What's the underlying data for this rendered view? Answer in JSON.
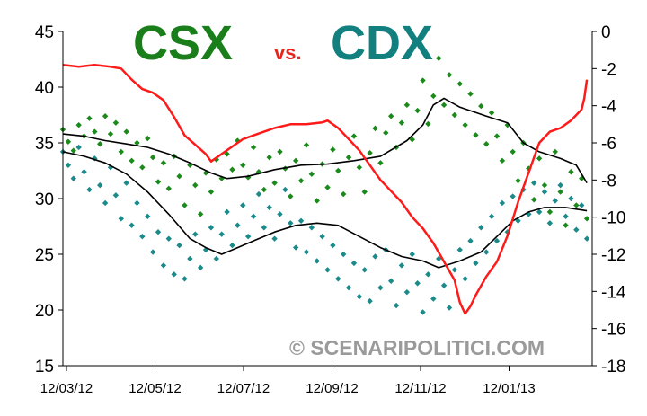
{
  "title": {
    "left": "CSX",
    "mid": "vs.",
    "right": "CDX",
    "left_color": "#1a7f1a",
    "mid_color": "#e8231e",
    "right_color": "#138080"
  },
  "watermark": "© SCENARIPOLITICI.COM",
  "chart_data": {
    "type": "scatter",
    "x_tick_labels": [
      "12/03/12",
      "12/05/12",
      "12/07/12",
      "12/09/12",
      "12/11/12",
      "12/01/13"
    ],
    "y_left_ticks": [
      45,
      40,
      35,
      30,
      25,
      20,
      15
    ],
    "y_right_ticks": [
      0,
      -2,
      -4,
      -6,
      -8,
      -10,
      -12,
      -14,
      -16,
      -18
    ],
    "y_left_range": [
      15,
      45
    ],
    "y_right_range": [
      -18,
      0
    ],
    "grid": false,
    "colors": {
      "csx_dots": "#1a8a1a",
      "cdx_dots": "#1a8a8a",
      "diff_line": "#ff1a1a",
      "avg_lines": "#000000"
    },
    "series": [
      {
        "axis": "left",
        "kind": "scatter",
        "color_key": "csx_dots",
        "points": [
          [
            0.0,
            36.2
          ],
          [
            0.01,
            35.1
          ],
          [
            0.02,
            34.3
          ],
          [
            0.03,
            36.6
          ],
          [
            0.04,
            35.6
          ],
          [
            0.05,
            37.2
          ],
          [
            0.06,
            36.0
          ],
          [
            0.07,
            34.9
          ],
          [
            0.08,
            37.4
          ],
          [
            0.09,
            35.8
          ],
          [
            0.1,
            36.8
          ],
          [
            0.11,
            34.2
          ],
          [
            0.12,
            36.0
          ],
          [
            0.13,
            33.4
          ],
          [
            0.14,
            35.0
          ],
          [
            0.15,
            32.8
          ],
          [
            0.16,
            35.4
          ],
          [
            0.17,
            33.7
          ],
          [
            0.18,
            31.5
          ],
          [
            0.19,
            33.2
          ],
          [
            0.2,
            30.9
          ],
          [
            0.21,
            33.8
          ],
          [
            0.22,
            32.0
          ],
          [
            0.23,
            29.4
          ],
          [
            0.24,
            33.0
          ],
          [
            0.25,
            31.2
          ],
          [
            0.26,
            28.6
          ],
          [
            0.27,
            32.3
          ],
          [
            0.28,
            30.6
          ],
          [
            0.29,
            33.5
          ],
          [
            0.3,
            31.8
          ],
          [
            0.31,
            34.0
          ],
          [
            0.32,
            32.6
          ],
          [
            0.33,
            35.2
          ],
          [
            0.34,
            33.0
          ],
          [
            0.35,
            31.9
          ],
          [
            0.36,
            34.6
          ],
          [
            0.37,
            32.4
          ],
          [
            0.38,
            30.8
          ],
          [
            0.39,
            33.7
          ],
          [
            0.4,
            31.4
          ],
          [
            0.41,
            34.2
          ],
          [
            0.42,
            32.7
          ],
          [
            0.43,
            30.2
          ],
          [
            0.44,
            33.4
          ],
          [
            0.45,
            31.6
          ],
          [
            0.46,
            34.8
          ],
          [
            0.47,
            32.2
          ],
          [
            0.48,
            29.8
          ],
          [
            0.49,
            33.1
          ],
          [
            0.5,
            31.0
          ],
          [
            0.51,
            34.4
          ],
          [
            0.52,
            32.5
          ],
          [
            0.53,
            30.4
          ],
          [
            0.54,
            33.7
          ],
          [
            0.55,
            35.6
          ],
          [
            0.56,
            32.8
          ],
          [
            0.57,
            30.6
          ],
          [
            0.58,
            34.1
          ],
          [
            0.59,
            36.3
          ],
          [
            0.6,
            33.2
          ],
          [
            0.61,
            35.9
          ],
          [
            0.62,
            37.4
          ],
          [
            0.63,
            34.6
          ],
          [
            0.64,
            36.8
          ],
          [
            0.65,
            38.4
          ],
          [
            0.66,
            35.3
          ],
          [
            0.67,
            37.9
          ],
          [
            0.68,
            40.6
          ],
          [
            0.69,
            36.7
          ],
          [
            0.7,
            39.2
          ],
          [
            0.71,
            42.6
          ],
          [
            0.72,
            38.4
          ],
          [
            0.73,
            41.1
          ],
          [
            0.74,
            37.5
          ],
          [
            0.75,
            40.3
          ],
          [
            0.76,
            36.6
          ],
          [
            0.77,
            39.4
          ],
          [
            0.78,
            35.7
          ],
          [
            0.79,
            38.3
          ],
          [
            0.8,
            34.9
          ],
          [
            0.81,
            37.7
          ],
          [
            0.82,
            35.6
          ],
          [
            0.83,
            33.4
          ],
          [
            0.84,
            36.6
          ],
          [
            0.85,
            34.2
          ],
          [
            0.86,
            31.6
          ],
          [
            0.87,
            35.0
          ],
          [
            0.88,
            32.7
          ],
          [
            0.89,
            29.9
          ],
          [
            0.9,
            33.6
          ],
          [
            0.91,
            31.2
          ],
          [
            0.92,
            28.8
          ],
          [
            0.93,
            34.2
          ],
          [
            0.94,
            30.6
          ],
          [
            0.95,
            27.6
          ],
          [
            0.96,
            32.4
          ],
          [
            0.97,
            29.4
          ],
          [
            0.98,
            31.8
          ],
          [
            0.99,
            28.2
          ]
        ]
      },
      {
        "axis": "left",
        "kind": "scatter",
        "color_key": "cdx_dots",
        "points": [
          [
            0.0,
            34.2
          ],
          [
            0.01,
            33.0
          ],
          [
            0.02,
            31.8
          ],
          [
            0.03,
            34.6
          ],
          [
            0.04,
            32.4
          ],
          [
            0.05,
            30.8
          ],
          [
            0.06,
            33.6
          ],
          [
            0.07,
            31.2
          ],
          [
            0.08,
            29.6
          ],
          [
            0.09,
            32.8
          ],
          [
            0.1,
            30.3
          ],
          [
            0.11,
            28.2
          ],
          [
            0.12,
            31.4
          ],
          [
            0.13,
            27.6
          ],
          [
            0.14,
            29.6
          ],
          [
            0.15,
            26.6
          ],
          [
            0.16,
            28.4
          ],
          [
            0.17,
            25.2
          ],
          [
            0.18,
            27.0
          ],
          [
            0.19,
            24.0
          ],
          [
            0.2,
            26.4
          ],
          [
            0.21,
            23.2
          ],
          [
            0.22,
            25.8
          ],
          [
            0.23,
            22.8
          ],
          [
            0.24,
            24.6
          ],
          [
            0.25,
            26.8
          ],
          [
            0.26,
            23.8
          ],
          [
            0.27,
            25.4
          ],
          [
            0.28,
            27.4
          ],
          [
            0.29,
            24.6
          ],
          [
            0.3,
            26.8
          ],
          [
            0.31,
            28.8
          ],
          [
            0.32,
            25.8
          ],
          [
            0.33,
            27.6
          ],
          [
            0.34,
            29.4
          ],
          [
            0.35,
            26.6
          ],
          [
            0.36,
            28.4
          ],
          [
            0.37,
            30.4
          ],
          [
            0.38,
            27.4
          ],
          [
            0.39,
            29.2
          ],
          [
            0.4,
            26.4
          ],
          [
            0.41,
            28.6
          ],
          [
            0.42,
            30.8
          ],
          [
            0.43,
            27.8
          ],
          [
            0.44,
            25.6
          ],
          [
            0.45,
            28.0
          ],
          [
            0.46,
            25.2
          ],
          [
            0.47,
            27.4
          ],
          [
            0.48,
            24.4
          ],
          [
            0.49,
            26.6
          ],
          [
            0.5,
            23.6
          ],
          [
            0.51,
            25.8
          ],
          [
            0.52,
            22.8
          ],
          [
            0.53,
            25.0
          ],
          [
            0.54,
            22.0
          ],
          [
            0.55,
            24.2
          ],
          [
            0.56,
            21.2
          ],
          [
            0.57,
            23.6
          ],
          [
            0.58,
            20.8
          ],
          [
            0.59,
            24.8
          ],
          [
            0.6,
            22.0
          ],
          [
            0.61,
            25.4
          ],
          [
            0.62,
            22.6
          ],
          [
            0.63,
            20.4
          ],
          [
            0.64,
            24.0
          ],
          [
            0.65,
            21.6
          ],
          [
            0.66,
            25.0
          ],
          [
            0.67,
            22.4
          ],
          [
            0.68,
            19.8
          ],
          [
            0.69,
            23.2
          ],
          [
            0.7,
            21.0
          ],
          [
            0.71,
            24.6
          ],
          [
            0.72,
            22.2
          ],
          [
            0.73,
            20.2
          ],
          [
            0.74,
            23.6
          ],
          [
            0.75,
            25.4
          ],
          [
            0.76,
            22.8
          ],
          [
            0.77,
            26.2
          ],
          [
            0.78,
            24.2
          ],
          [
            0.79,
            27.4
          ],
          [
            0.8,
            25.2
          ],
          [
            0.81,
            28.4
          ],
          [
            0.82,
            26.2
          ],
          [
            0.83,
            29.6
          ],
          [
            0.84,
            27.0
          ],
          [
            0.85,
            30.2
          ],
          [
            0.86,
            28.0
          ],
          [
            0.87,
            30.8
          ],
          [
            0.88,
            28.6
          ],
          [
            0.89,
            31.4
          ],
          [
            0.9,
            28.8
          ],
          [
            0.91,
            30.6
          ],
          [
            0.92,
            27.8
          ],
          [
            0.93,
            29.8
          ],
          [
            0.94,
            31.2
          ],
          [
            0.95,
            28.4
          ],
          [
            0.96,
            30.0
          ],
          [
            0.97,
            27.2
          ],
          [
            0.98,
            29.4
          ],
          [
            0.99,
            26.4
          ]
        ]
      },
      {
        "axis": "left",
        "kind": "line",
        "color_key": "avg_lines",
        "points": [
          [
            0.0,
            35.8
          ],
          [
            0.04,
            35.6
          ],
          [
            0.08,
            35.2
          ],
          [
            0.12,
            34.9
          ],
          [
            0.16,
            34.6
          ],
          [
            0.2,
            34.0
          ],
          [
            0.24,
            33.2
          ],
          [
            0.28,
            32.3
          ],
          [
            0.31,
            31.8
          ],
          [
            0.35,
            32.0
          ],
          [
            0.4,
            32.6
          ],
          [
            0.45,
            33.0
          ],
          [
            0.5,
            33.1
          ],
          [
            0.55,
            33.4
          ],
          [
            0.6,
            33.8
          ],
          [
            0.65,
            35.2
          ],
          [
            0.68,
            36.6
          ],
          [
            0.7,
            38.4
          ],
          [
            0.72,
            39.0
          ],
          [
            0.75,
            38.2
          ],
          [
            0.8,
            37.4
          ],
          [
            0.84,
            36.8
          ],
          [
            0.87,
            35.0
          ],
          [
            0.9,
            34.2
          ],
          [
            0.94,
            33.6
          ],
          [
            0.97,
            33.0
          ],
          [
            0.99,
            31.4
          ]
        ]
      },
      {
        "axis": "left",
        "kind": "line",
        "color_key": "avg_lines",
        "points": [
          [
            0.0,
            34.2
          ],
          [
            0.04,
            33.8
          ],
          [
            0.08,
            33.2
          ],
          [
            0.12,
            32.2
          ],
          [
            0.16,
            30.6
          ],
          [
            0.2,
            28.6
          ],
          [
            0.24,
            26.4
          ],
          [
            0.27,
            25.6
          ],
          [
            0.3,
            25.0
          ],
          [
            0.33,
            25.6
          ],
          [
            0.36,
            26.2
          ],
          [
            0.4,
            27.0
          ],
          [
            0.44,
            27.6
          ],
          [
            0.48,
            27.8
          ],
          [
            0.52,
            27.6
          ],
          [
            0.56,
            26.6
          ],
          [
            0.6,
            25.6
          ],
          [
            0.64,
            24.8
          ],
          [
            0.68,
            24.4
          ],
          [
            0.71,
            23.8
          ],
          [
            0.75,
            24.4
          ],
          [
            0.79,
            25.2
          ],
          [
            0.82,
            26.6
          ],
          [
            0.85,
            28.0
          ],
          [
            0.88,
            28.8
          ],
          [
            0.91,
            29.2
          ],
          [
            0.95,
            29.2
          ],
          [
            0.99,
            28.9
          ]
        ]
      },
      {
        "axis": "right",
        "kind": "line",
        "color_key": "diff_line",
        "points": [
          [
            0.0,
            -1.8
          ],
          [
            0.03,
            -1.9
          ],
          [
            0.06,
            -1.8
          ],
          [
            0.09,
            -1.9
          ],
          [
            0.11,
            -2.0
          ],
          [
            0.13,
            -2.6
          ],
          [
            0.15,
            -3.1
          ],
          [
            0.17,
            -3.3
          ],
          [
            0.19,
            -3.7
          ],
          [
            0.21,
            -4.6
          ],
          [
            0.23,
            -5.6
          ],
          [
            0.25,
            -6.1
          ],
          [
            0.27,
            -6.6
          ],
          [
            0.28,
            -7.0
          ],
          [
            0.3,
            -6.6
          ],
          [
            0.32,
            -6.2
          ],
          [
            0.34,
            -5.8
          ],
          [
            0.36,
            -5.6
          ],
          [
            0.38,
            -5.4
          ],
          [
            0.4,
            -5.2
          ],
          [
            0.43,
            -5.0
          ],
          [
            0.46,
            -5.0
          ],
          [
            0.49,
            -4.9
          ],
          [
            0.5,
            -4.8
          ],
          [
            0.52,
            -5.2
          ],
          [
            0.54,
            -5.8
          ],
          [
            0.56,
            -6.4
          ],
          [
            0.58,
            -7.2
          ],
          [
            0.6,
            -8.0
          ],
          [
            0.62,
            -8.6
          ],
          [
            0.64,
            -9.2
          ],
          [
            0.66,
            -10.0
          ],
          [
            0.68,
            -10.6
          ],
          [
            0.7,
            -11.4
          ],
          [
            0.72,
            -12.4
          ],
          [
            0.74,
            -13.4
          ],
          [
            0.75,
            -14.6
          ],
          [
            0.76,
            -15.2
          ],
          [
            0.77,
            -14.8
          ],
          [
            0.78,
            -14.2
          ],
          [
            0.8,
            -13.2
          ],
          [
            0.82,
            -12.4
          ],
          [
            0.84,
            -11.0
          ],
          [
            0.86,
            -9.2
          ],
          [
            0.88,
            -7.6
          ],
          [
            0.89,
            -6.8
          ],
          [
            0.9,
            -6.0
          ],
          [
            0.92,
            -5.4
          ],
          [
            0.94,
            -5.2
          ],
          [
            0.96,
            -4.8
          ],
          [
            0.98,
            -4.2
          ],
          [
            0.985,
            -3.6
          ],
          [
            0.99,
            -2.6
          ]
        ]
      }
    ]
  }
}
